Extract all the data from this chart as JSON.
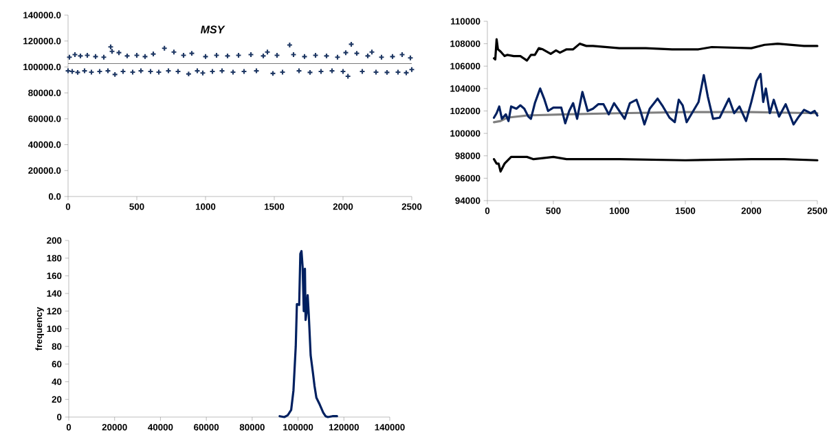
{
  "chart_data": [
    {
      "type": "scatter",
      "title": "MSY",
      "marker": "cross",
      "x": [
        0,
        10,
        30,
        50,
        70,
        90,
        120,
        140,
        170,
        200,
        230,
        260,
        290,
        310,
        320,
        341,
        370,
        400,
        430,
        470,
        500,
        530,
        560,
        600,
        620,
        660,
        701,
        730,
        770,
        800,
        840,
        877,
        900,
        940,
        980,
        1000,
        1050,
        1080,
        1120,
        1160,
        1200,
        1240,
        1280,
        1330,
        1370,
        1420,
        1450,
        1490,
        1520,
        1560,
        1612,
        1640,
        1680,
        1720,
        1760,
        1800,
        1840,
        1880,
        1920,
        1960,
        2000,
        2020,
        2036,
        2060,
        2100,
        2140,
        2180,
        2210,
        2240,
        2280,
        2320,
        2360,
        2400,
        2430,
        2460,
        2490,
        2500
      ],
      "series": [
        {
          "color": "#1f3864",
          "values": [
            97000,
            107500,
            96500,
            109500,
            95800,
            108500,
            97000,
            109000,
            96000,
            108000,
            96500,
            107500,
            97000,
            115500,
            112000,
            94200,
            111000,
            96500,
            108500,
            96000,
            109000,
            97000,
            108000,
            96500,
            110000,
            96000,
            114400,
            97000,
            111500,
            96500,
            109000,
            94600,
            110500,
            97000,
            95300,
            108000,
            96500,
            109000,
            97000,
            108500,
            96000,
            109000,
            96500,
            109500,
            97000,
            108500,
            111500,
            95000,
            109000,
            96000,
            116900,
            109500,
            97000,
            108000,
            95800,
            109000,
            96500,
            108500,
            97000,
            107500,
            96500,
            111000,
            92800,
            117500,
            110500,
            96500,
            108500,
            111500,
            96000,
            107500,
            95800,
            108000,
            96000,
            109500,
            95500,
            107000,
            98000
          ]
        }
      ],
      "ref_lines": [
        {
          "axis": "y",
          "value": 102600,
          "color": "#000000"
        }
      ],
      "xlim": [
        0,
        2500
      ],
      "xticks": [
        0,
        500,
        1000,
        1500,
        2000,
        2500
      ],
      "ylim": [
        0,
        140000
      ],
      "yticks": [
        {
          "value": 0,
          "label": "0.0"
        },
        {
          "value": 20000,
          "label": "20000.0"
        },
        {
          "value": 40000,
          "label": "40000.0"
        },
        {
          "value": 60000,
          "label": "60000.0"
        },
        {
          "value": 80000,
          "label": "80000.0"
        },
        {
          "value": 100000,
          "label": "100000.0"
        },
        {
          "value": 120000,
          "label": "120000.0"
        },
        {
          "value": 140000,
          "label": "140000.0"
        }
      ]
    },
    {
      "type": "line",
      "xlim": [
        0,
        2500
      ],
      "xticks": [
        0,
        500,
        1000,
        1500,
        2000,
        2500
      ],
      "ylim": [
        94000,
        110000
      ],
      "yticks": [
        94000,
        96000,
        98000,
        100000,
        102000,
        104000,
        106000,
        108000,
        110000
      ],
      "series": [
        {
          "color": "#000000",
          "x": [
            50,
            60,
            70,
            80,
            100,
            130,
            150,
            200,
            250,
            300,
            330,
            360,
            390,
            420,
            450,
            480,
            520,
            550,
            600,
            650,
            700,
            750,
            800,
            1000,
            1200,
            1400,
            1600,
            1700,
            2000,
            2100,
            2200,
            2400,
            2500
          ],
          "values": [
            106700,
            106600,
            108400,
            107500,
            107300,
            106900,
            107000,
            106900,
            106900,
            106500,
            107000,
            107000,
            107600,
            107500,
            107300,
            107100,
            107400,
            107200,
            107500,
            107500,
            108000,
            107800,
            107800,
            107600,
            107600,
            107500,
            107500,
            107700,
            107600,
            107900,
            108000,
            107800,
            107800
          ]
        },
        {
          "color": "#808080",
          "x": [
            50,
            100,
            150,
            300,
            600,
            1000,
            1500,
            2000,
            2500
          ],
          "values": [
            101000,
            101100,
            101400,
            101600,
            101700,
            101800,
            101900,
            101900,
            101800
          ]
        },
        {
          "color": "#002060",
          "x": [
            50,
            70,
            90,
            110,
            140,
            160,
            180,
            220,
            250,
            280,
            310,
            330,
            360,
            400,
            430,
            460,
            500,
            560,
            590,
            620,
            650,
            680,
            720,
            760,
            800,
            840,
            880,
            920,
            960,
            1000,
            1040,
            1080,
            1130,
            1160,
            1190,
            1230,
            1290,
            1330,
            1380,
            1420,
            1450,
            1480,
            1510,
            1560,
            1600,
            1640,
            1670,
            1710,
            1760,
            1830,
            1870,
            1910,
            1960,
            2000,
            2040,
            2070,
            2090,
            2110,
            2140,
            2170,
            2210,
            2260,
            2300,
            2320,
            2360,
            2400,
            2450,
            2480,
            2500
          ],
          "values": [
            101400,
            101800,
            102400,
            101300,
            101700,
            101100,
            102400,
            102200,
            102500,
            102200,
            101500,
            101300,
            102700,
            104000,
            103100,
            102000,
            102300,
            102300,
            100900,
            102000,
            102700,
            101300,
            103700,
            102000,
            102200,
            102600,
            102600,
            101700,
            102700,
            102000,
            101300,
            102700,
            103000,
            102000,
            100800,
            102200,
            103100,
            102400,
            101400,
            101000,
            103000,
            102500,
            101000,
            102000,
            102800,
            105200,
            103300,
            101300,
            101400,
            103100,
            101800,
            102400,
            101100,
            102800,
            104700,
            105300,
            102800,
            104000,
            101800,
            103000,
            101500,
            102600,
            101400,
            100800,
            101500,
            102100,
            101800,
            102000,
            101600
          ]
        },
        {
          "color": "#000000",
          "x": [
            50,
            70,
            85,
            100,
            130,
            180,
            300,
            350,
            500,
            600,
            1000,
            1500,
            2000,
            2250,
            2500
          ],
          "values": [
            97700,
            97300,
            97300,
            96600,
            97300,
            97900,
            97900,
            97700,
            97900,
            97700,
            97700,
            97600,
            97700,
            97700,
            97600
          ]
        }
      ]
    },
    {
      "type": "line",
      "ylabel": "frequency",
      "xlim": [
        0,
        140000
      ],
      "xticks": [
        0,
        20000,
        40000,
        60000,
        80000,
        100000,
        120000,
        140000
      ],
      "ylim": [
        0,
        200
      ],
      "yticks": [
        0,
        20,
        40,
        60,
        80,
        100,
        120,
        140,
        160,
        180,
        200
      ],
      "series": [
        {
          "color": "#002060",
          "x": [
            92000,
            94000,
            95500,
            97000,
            98000,
            99000,
            99500,
            100500,
            101000,
            101500,
            102000,
            102500,
            103000,
            103300,
            103800,
            104200,
            104700,
            105500,
            106500,
            107200,
            108000,
            109500,
            111000,
            112000,
            113000,
            115000,
            117000
          ],
          "values": [
            1,
            0,
            2,
            8,
            30,
            80,
            128,
            127,
            185,
            188,
            170,
            120,
            168,
            110,
            120,
            138,
            115,
            70,
            50,
            35,
            22,
            14,
            5,
            1,
            0,
            1,
            1
          ]
        }
      ]
    }
  ]
}
